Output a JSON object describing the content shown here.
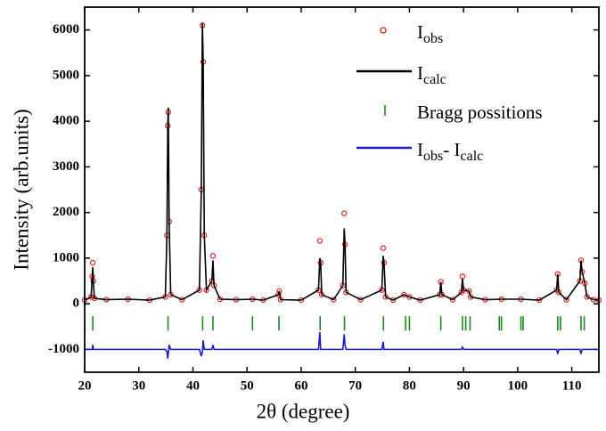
{
  "chart_data": {
    "type": "rietveld",
    "xlabel": "2θ (degree)",
    "ylabel": "Intensity (arb.units)",
    "xlim": [
      20,
      115
    ],
    "xticks": [
      20,
      30,
      40,
      50,
      60,
      70,
      80,
      90,
      100,
      110
    ],
    "ylim": [
      -1500,
      6500
    ],
    "yticks": [
      -1000,
      0,
      1000,
      2000,
      3000,
      4000,
      5000,
      6000
    ],
    "legend": "upper right",
    "x": [
      20,
      21.2,
      21.4,
      21.5,
      21.6,
      21.8,
      24,
      28,
      32,
      34.9,
      35.2,
      35.35,
      35.45,
      35.6,
      35.9,
      38,
      41.2,
      41.55,
      41.75,
      41.9,
      42.1,
      42.5,
      43.5,
      43.7,
      43.9,
      45,
      48,
      51,
      53,
      55.8,
      55.95,
      56.2,
      60,
      63.2,
      63.45,
      63.6,
      63.8,
      66,
      67.7,
      67.95,
      68.1,
      68.3,
      71,
      74.9,
      75.15,
      75.3,
      75.6,
      77,
      79,
      80,
      82,
      85.6,
      85.8,
      86,
      88,
      89.6,
      89.8,
      90,
      91,
      91.3,
      94,
      97,
      100.6,
      104,
      107.2,
      107.4,
      107.6,
      109,
      111.5,
      111.7,
      111.9,
      112.4,
      112.8,
      114,
      115
    ],
    "series": [
      {
        "name": [
          "I",
          "obs"
        ],
        "color": "#e0201b",
        "style": "markers",
        "values": [
          80,
          150,
          600,
          900,
          500,
          120,
          90,
          100,
          80,
          150,
          1500,
          3900,
          4200,
          1800,
          200,
          90,
          300,
          2500,
          6100,
          5300,
          1500,
          300,
          500,
          1050,
          400,
          100,
          90,
          100,
          80,
          200,
          280,
          90,
          80,
          300,
          1380,
          900,
          200,
          90,
          400,
          1980,
          1300,
          250,
          90,
          300,
          1220,
          900,
          150,
          80,
          200,
          150,
          80,
          200,
          480,
          200,
          90,
          250,
          600,
          300,
          280,
          150,
          90,
          100,
          100,
          80,
          300,
          650,
          250,
          90,
          500,
          950,
          700,
          450,
          150,
          90,
          80
        ]
      },
      {
        "name": [
          "I",
          "calc"
        ],
        "color": "#000000",
        "style": "line",
        "values": [
          80,
          150,
          600,
          800,
          500,
          120,
          90,
          100,
          80,
          150,
          1500,
          3900,
          4300,
          1800,
          200,
          90,
          300,
          2500,
          6150,
          5300,
          1500,
          300,
          500,
          950,
          400,
          100,
          90,
          100,
          80,
          200,
          280,
          90,
          80,
          300,
          1000,
          900,
          200,
          90,
          400,
          1650,
          1300,
          250,
          90,
          300,
          1050,
          900,
          150,
          80,
          200,
          150,
          80,
          200,
          480,
          200,
          90,
          250,
          550,
          300,
          280,
          150,
          90,
          100,
          100,
          80,
          300,
          650,
          250,
          90,
          500,
          950,
          700,
          450,
          150,
          90,
          80
        ]
      },
      {
        "name": [
          "Bragg possitions"
        ],
        "color": "#1a8a1a",
        "style": "bragg",
        "x": [
          21.5,
          35.4,
          41.8,
          43.7,
          51,
          55.9,
          63.5,
          68.0,
          75.2,
          79.3,
          80.0,
          85.8,
          89.8,
          90.4,
          91.2,
          96.6,
          97.0,
          100.6,
          101.0,
          107.4,
          107.9,
          111.7,
          112.3
        ]
      },
      {
        "name": [
          "I",
          "obs",
          "- I",
          "calc"
        ],
        "color": "#1a1ad0",
        "style": "line",
        "values": [
          -1000,
          -1000,
          -1000,
          -900,
          -1000,
          -1000,
          -1000,
          -1000,
          -1000,
          -1000,
          -1050,
          -1200,
          -1100,
          -900,
          -1000,
          -1000,
          -1000,
          -1150,
          -1050,
          -800,
          -1000,
          -1000,
          -1000,
          -900,
          -1000,
          -1000,
          -1000,
          -1000,
          -1000,
          -1000,
          -1000,
          -1000,
          -1000,
          -1000,
          -620,
          -1000,
          -1000,
          -1000,
          -1000,
          -670,
          -900,
          -1000,
          -1000,
          -1000,
          -830,
          -1000,
          -1000,
          -1000,
          -1000,
          -1000,
          -1000,
          -1000,
          -1000,
          -1000,
          -1000,
          -1000,
          -950,
          -1000,
          -1000,
          -1000,
          -1000,
          -1000,
          -1000,
          -1000,
          -1000,
          -1100,
          -1000,
          -1000,
          -1000,
          -1100,
          -1000,
          -1000,
          -1000,
          -1000,
          -1000
        ]
      }
    ]
  }
}
